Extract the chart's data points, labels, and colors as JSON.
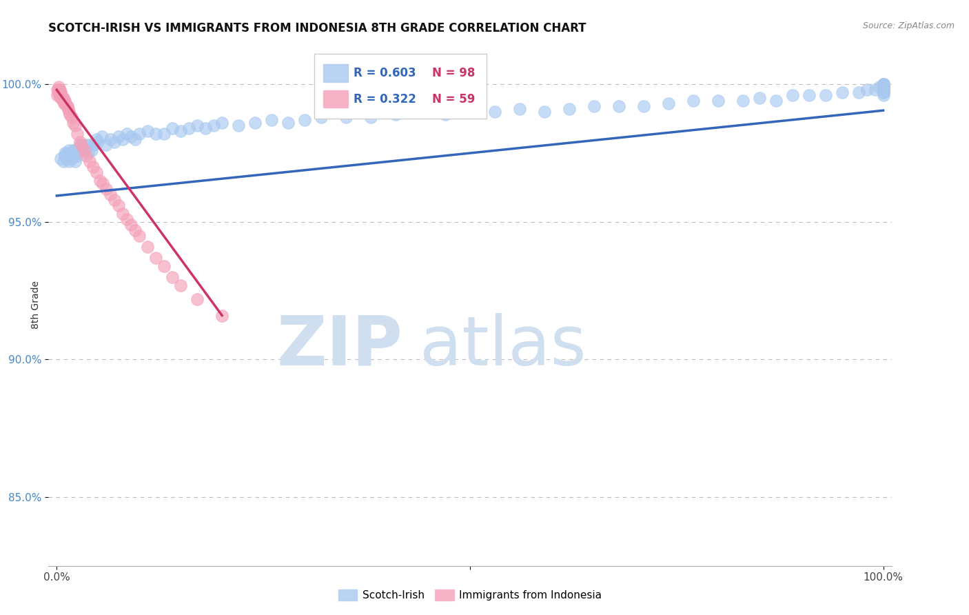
{
  "title": "SCOTCH-IRISH VS IMMIGRANTS FROM INDONESIA 8TH GRADE CORRELATION CHART",
  "source_text": "Source: ZipAtlas.com",
  "ylabel": "8th Grade",
  "ytick_labels": [
    "100.0%",
    "95.0%",
    "90.0%",
    "85.0%"
  ],
  "ytick_values": [
    1.0,
    0.95,
    0.9,
    0.85
  ],
  "xlim": [
    -0.01,
    1.01
  ],
  "ylim": [
    0.825,
    1.015
  ],
  "legend_blue_r": "R = 0.603",
  "legend_blue_n": "N = 98",
  "legend_pink_r": "R = 0.322",
  "legend_pink_n": "N = 59",
  "blue_color": "#a8c8f0",
  "pink_color": "#f4a0b8",
  "blue_line_color": "#3366bb",
  "pink_line_color": "#cc3366",
  "watermark_zip": "ZIP",
  "watermark_atlas": "atlas",
  "watermark_color": "#d0dff0",
  "title_fontsize": 12,
  "blue_scatter_x": [
    0.005,
    0.008,
    0.01,
    0.01,
    0.012,
    0.012,
    0.015,
    0.015,
    0.018,
    0.018,
    0.02,
    0.02,
    0.022,
    0.022,
    0.022,
    0.025,
    0.025,
    0.025,
    0.028,
    0.028,
    0.03,
    0.03,
    0.032,
    0.035,
    0.038,
    0.04,
    0.042,
    0.045,
    0.048,
    0.05,
    0.055,
    0.06,
    0.065,
    0.07,
    0.075,
    0.08,
    0.085,
    0.09,
    0.095,
    0.1,
    0.11,
    0.12,
    0.13,
    0.14,
    0.15,
    0.16,
    0.17,
    0.18,
    0.19,
    0.2,
    0.22,
    0.24,
    0.26,
    0.28,
    0.3,
    0.32,
    0.35,
    0.38,
    0.41,
    0.44,
    0.47,
    0.5,
    0.53,
    0.56,
    0.59,
    0.62,
    0.65,
    0.68,
    0.71,
    0.74,
    0.77,
    0.8,
    0.83,
    0.85,
    0.87,
    0.89,
    0.91,
    0.93,
    0.95,
    0.97,
    0.98,
    0.99,
    0.995,
    1.0,
    1.0,
    1.0,
    1.0,
    1.0,
    1.0,
    1.0,
    1.0,
    1.0,
    1.0,
    1.0,
    1.0,
    1.0,
    1.0,
    1.0
  ],
  "blue_scatter_y": [
    0.973,
    0.972,
    0.974,
    0.975,
    0.975,
    0.973,
    0.976,
    0.972,
    0.973,
    0.975,
    0.976,
    0.974,
    0.976,
    0.975,
    0.972,
    0.974,
    0.975,
    0.976,
    0.976,
    0.978,
    0.977,
    0.978,
    0.976,
    0.978,
    0.975,
    0.978,
    0.976,
    0.978,
    0.98,
    0.979,
    0.981,
    0.978,
    0.98,
    0.979,
    0.981,
    0.98,
    0.982,
    0.981,
    0.98,
    0.982,
    0.983,
    0.982,
    0.982,
    0.984,
    0.983,
    0.984,
    0.985,
    0.984,
    0.985,
    0.986,
    0.985,
    0.986,
    0.987,
    0.986,
    0.987,
    0.988,
    0.988,
    0.988,
    0.989,
    0.99,
    0.989,
    0.99,
    0.99,
    0.991,
    0.99,
    0.991,
    0.992,
    0.992,
    0.992,
    0.993,
    0.994,
    0.994,
    0.994,
    0.995,
    0.994,
    0.996,
    0.996,
    0.996,
    0.997,
    0.997,
    0.998,
    0.998,
    0.999,
    0.996,
    0.998,
    0.997,
    0.999,
    0.998,
    0.999,
    1.0,
    0.997,
    0.999,
    1.0,
    0.998,
    0.999,
    0.999,
    1.0,
    1.0
  ],
  "pink_scatter_x": [
    0.001,
    0.001,
    0.002,
    0.002,
    0.002,
    0.003,
    0.003,
    0.003,
    0.004,
    0.004,
    0.004,
    0.005,
    0.005,
    0.005,
    0.006,
    0.006,
    0.007,
    0.007,
    0.008,
    0.008,
    0.009,
    0.009,
    0.01,
    0.01,
    0.011,
    0.012,
    0.013,
    0.014,
    0.015,
    0.016,
    0.018,
    0.02,
    0.022,
    0.025,
    0.028,
    0.03,
    0.033,
    0.036,
    0.04,
    0.044,
    0.048,
    0.052,
    0.056,
    0.06,
    0.065,
    0.07,
    0.075,
    0.08,
    0.085,
    0.09,
    0.095,
    0.1,
    0.11,
    0.12,
    0.13,
    0.14,
    0.15,
    0.17,
    0.2
  ],
  "pink_scatter_y": [
    0.998,
    0.996,
    0.997,
    0.998,
    0.999,
    0.997,
    0.998,
    0.996,
    0.997,
    0.996,
    0.998,
    0.996,
    0.997,
    0.995,
    0.996,
    0.995,
    0.995,
    0.994,
    0.995,
    0.994,
    0.994,
    0.993,
    0.993,
    0.994,
    0.993,
    0.992,
    0.992,
    0.991,
    0.99,
    0.989,
    0.988,
    0.986,
    0.985,
    0.982,
    0.979,
    0.978,
    0.976,
    0.974,
    0.972,
    0.97,
    0.968,
    0.965,
    0.964,
    0.962,
    0.96,
    0.958,
    0.956,
    0.953,
    0.951,
    0.949,
    0.947,
    0.945,
    0.941,
    0.937,
    0.934,
    0.93,
    0.927,
    0.922,
    0.916
  ],
  "blue_trendline": [
    0.0,
    1.0,
    0.9595,
    0.9905
  ],
  "pink_trendline": [
    0.0,
    0.2,
    0.998,
    0.916
  ]
}
